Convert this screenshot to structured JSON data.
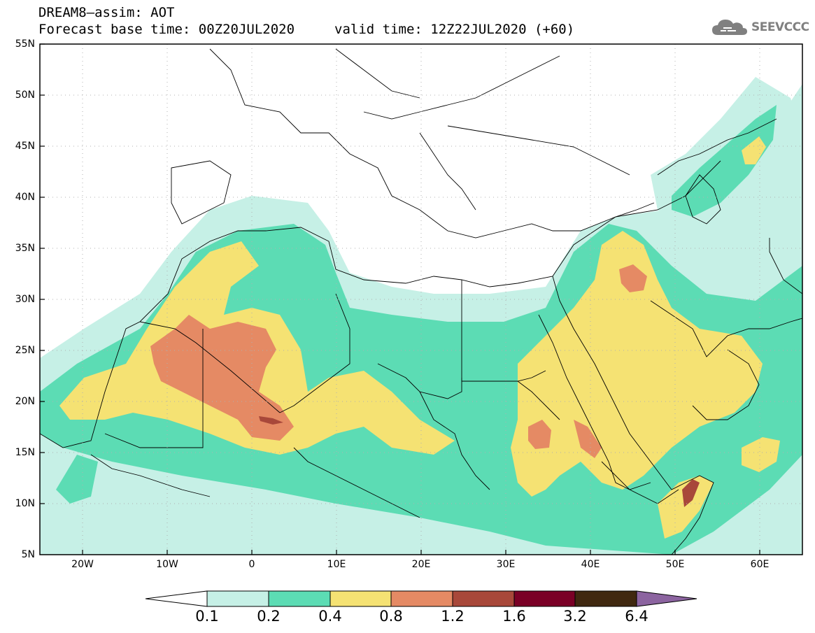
{
  "header": {
    "title_line1": "DREAM8–assim: AOT",
    "title_line2": "Forecast base time: 00Z20JUL2020",
    "valid_time": "valid time: 12Z22JUL2020 (+60)",
    "logo_text": "SEEVCCC"
  },
  "map": {
    "latitude_labels": [
      "55N",
      "50N",
      "45N",
      "40N",
      "35N",
      "30N",
      "25N",
      "20N",
      "15N",
      "10N",
      "5N"
    ],
    "longitude_labels": [
      "20W",
      "10W",
      "0",
      "10E",
      "20E",
      "30E",
      "40E",
      "50E",
      "60E"
    ],
    "lat_range": [
      5,
      55
    ],
    "lon_range": [
      -25,
      65
    ]
  },
  "colorbar": {
    "labels": [
      "0.1",
      "0.2",
      "0.4",
      "0.8",
      "1.2",
      "1.6",
      "3.2",
      "6.4"
    ],
    "colors": [
      "#ffffff",
      "#c6f0e6",
      "#5cdcb4",
      "#f5e273",
      "#e58a64",
      "#a8483a",
      "#7a0026",
      "#402810",
      "#8c64a0"
    ]
  },
  "colors": {
    "aot_0_1_0_2": "#c6f0e6",
    "aot_0_2_0_4": "#5cdcb4",
    "aot_0_4_0_8": "#f5e273",
    "aot_0_8_1_2": "#e58a64",
    "aot_1_2_1_6": "#a8483a",
    "aot_1_6_3_2": "#7a0026",
    "logo_gray": "#808080"
  }
}
